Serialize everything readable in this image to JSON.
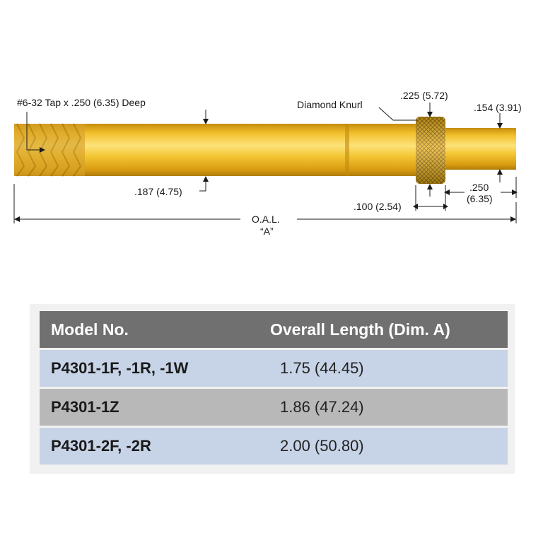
{
  "drawing": {
    "labels": {
      "tap": "#6-32 Tap x .250 (6.35) Deep",
      "knurl": "Diamond Knurl",
      "knurl_width": ".225 (5.72)",
      "tip_dia": ".154 (3.91)",
      "body_dia": ".187 (4.75)",
      "knurl_len": ".100 (2.54)",
      "tip_len_1": ".250",
      "tip_len_2": "(6.35)",
      "oal_1": "O.A.L.",
      "oal_2": "“A”"
    },
    "colors": {
      "brass_light": "#fde27a",
      "brass_mid": "#f2c02c",
      "brass_dark": "#c78d0e",
      "line": "#1a1a1a"
    }
  },
  "table": {
    "headers": [
      "Model No.",
      "Overall Length (Dim. A)"
    ],
    "rows": [
      {
        "model": "P4301-1F, -1R, -1W",
        "length": "1.75 (44.45)"
      },
      {
        "model": "P4301-1Z",
        "length": "1.86 (47.24)"
      },
      {
        "model": "P4301-2F, -2R",
        "length": "2.00 (50.80)"
      }
    ],
    "colors": {
      "header": "#707070",
      "row_blue": "#c7d3e6",
      "row_gray": "#b9b8b8"
    }
  }
}
